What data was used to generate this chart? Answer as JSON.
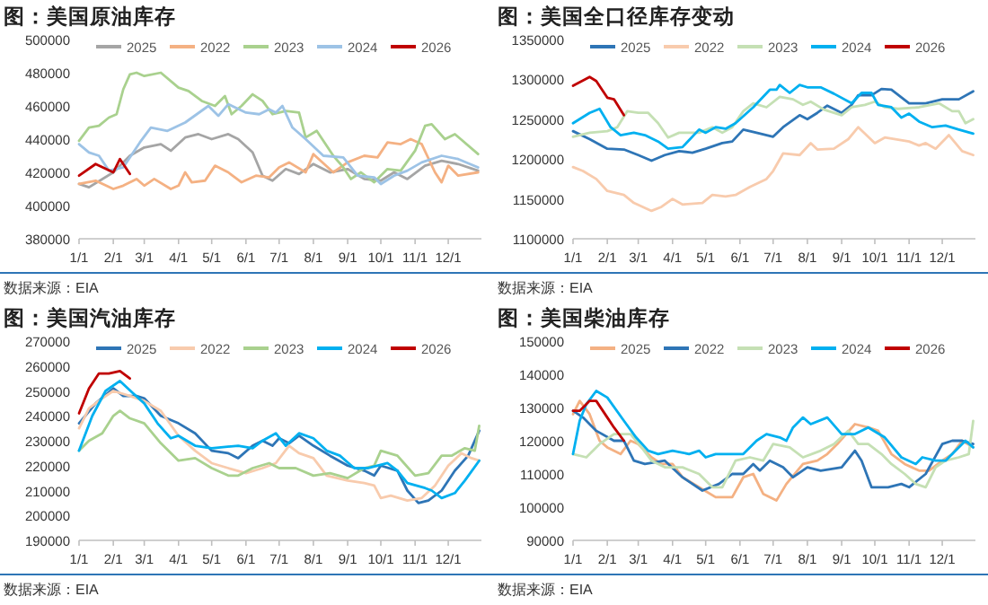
{
  "chart_data": [
    {
      "type": "line",
      "title": "图：美国原油库存",
      "annotations": [
        "数据来源：EIA"
      ],
      "legend": "top",
      "xlim": [
        "--01-01",
        "--12-31"
      ],
      "xticks": [
        {
          "value": "--01-01",
          "label": "1/1"
        },
        {
          "value": "--02-01",
          "label": "2/1"
        },
        {
          "value": "--03-01",
          "label": "3/1"
        },
        {
          "value": "--04-01",
          "label": "4/1"
        },
        {
          "value": "--05-01",
          "label": "5/1"
        },
        {
          "value": "--06-01",
          "label": "6/1"
        },
        {
          "value": "--07-01",
          "label": "7/1"
        },
        {
          "value": "--08-01",
          "label": "8/1"
        },
        {
          "value": "--09-01",
          "label": "9/1"
        },
        {
          "value": "--10-01",
          "label": "10/1"
        },
        {
          "value": "--11-01",
          "label": "11/1"
        },
        {
          "value": "--12-01",
          "label": "12/1"
        }
      ],
      "ylim": [
        380000,
        500000
      ],
      "yticks": [
        380000,
        400000,
        420000,
        440000,
        460000,
        480000,
        500000
      ],
      "series": [
        {
          "name": "2025",
          "color": "#a5a5a5",
          "x": [
            "--01-01",
            "--01-10",
            "--02-01",
            "--02-16",
            "--03-01",
            "--03-16",
            "--03-25",
            "--04-07",
            "--04-19",
            "--05-01",
            "--05-16",
            "--05-25",
            "--06-07",
            "--06-16",
            "--06-25",
            "--07-07",
            "--07-19",
            "--08-01",
            "--08-16",
            "--09-01",
            "--09-16",
            "--10-01",
            "--10-13",
            "--10-25",
            "--11-10",
            "--11-25",
            "--12-10",
            "--12-28"
          ],
          "values": [
            413000,
            411000,
            420000,
            430000,
            435000,
            437000,
            433000,
            441000,
            443000,
            440000,
            443000,
            440000,
            432000,
            418000,
            415000,
            422000,
            419000,
            425000,
            420000,
            422000,
            416000,
            415000,
            420000,
            416000,
            424000,
            427000,
            425000,
            421000
          ]
        },
        {
          "name": "2022",
          "color": "#f4b183",
          "x": [
            "--01-01",
            "--01-16",
            "--02-01",
            "--02-10",
            "--02-22",
            "--03-01",
            "--03-10",
            "--03-25",
            "--04-01",
            "--04-07",
            "--04-13",
            "--04-25",
            "--05-04",
            "--05-16",
            "--05-28",
            "--06-10",
            "--06-22",
            "--07-01",
            "--07-10",
            "--07-25",
            "--08-01",
            "--08-19",
            "--09-01",
            "--09-16",
            "--09-28",
            "--10-07",
            "--10-19",
            "--10-28",
            "--11-07",
            "--11-19",
            "--11-25",
            "--12-01",
            "--12-10",
            "--12-28"
          ],
          "values": [
            413000,
            415000,
            410000,
            412000,
            416000,
            412000,
            416000,
            410000,
            412000,
            420000,
            414000,
            415000,
            424000,
            420000,
            414000,
            418000,
            417000,
            423000,
            426000,
            420000,
            431000,
            420000,
            426000,
            430000,
            429000,
            438000,
            437000,
            440000,
            437000,
            420000,
            414000,
            424000,
            418000,
            420000
          ]
        },
        {
          "name": "2023",
          "color": "#a9d18e",
          "x": [
            "--01-01",
            "--01-10",
            "--01-19",
            "--01-28",
            "--02-04",
            "--02-10",
            "--02-16",
            "--02-22",
            "--03-01",
            "--03-16",
            "--04-01",
            "--04-10",
            "--04-22",
            "--05-04",
            "--05-13",
            "--05-19",
            "--05-28",
            "--06-07",
            "--06-16",
            "--06-25",
            "--07-07",
            "--07-19",
            "--07-25",
            "--08-04",
            "--08-19",
            "--08-28",
            "--09-04",
            "--09-13",
            "--09-25",
            "--10-07",
            "--10-19",
            "--11-01",
            "--11-10",
            "--11-16",
            "--11-28",
            "--12-07",
            "--12-28"
          ],
          "values": [
            439000,
            447000,
            448000,
            453000,
            455000,
            470000,
            479000,
            480000,
            478000,
            480000,
            471000,
            469000,
            463000,
            460000,
            466000,
            455000,
            460000,
            467000,
            463000,
            455000,
            457000,
            456000,
            441000,
            445000,
            430000,
            423000,
            416000,
            420000,
            414000,
            422000,
            421000,
            433000,
            448000,
            449000,
            440000,
            443000,
            431000
          ]
        },
        {
          "name": "2024",
          "color": "#9dc3e6",
          "x": [
            "--01-01",
            "--01-10",
            "--01-19",
            "--01-28",
            "--02-10",
            "--02-25",
            "--03-07",
            "--03-22",
            "--04-07",
            "--04-28",
            "--05-07",
            "--05-16",
            "--06-01",
            "--06-13",
            "--06-22",
            "--06-28",
            "--07-04",
            "--07-13",
            "--07-25",
            "--08-10",
            "--08-28",
            "--09-10",
            "--09-25",
            "--10-01",
            "--10-13",
            "--10-25",
            "--11-07",
            "--11-25",
            "--12-10",
            "--12-28"
          ],
          "values": [
            437000,
            432000,
            430000,
            421000,
            423000,
            438000,
            447000,
            445000,
            450000,
            460000,
            454000,
            461000,
            456000,
            455000,
            458000,
            456000,
            460000,
            447000,
            440000,
            430000,
            429000,
            418000,
            417000,
            413000,
            418000,
            421000,
            426000,
            430000,
            428000,
            423000
          ]
        },
        {
          "name": "2026",
          "color": "#c00000",
          "x": [
            "--01-01",
            "--01-16",
            "--02-01",
            "--02-07",
            "--02-16"
          ],
          "values": [
            418000,
            425000,
            420000,
            428000,
            419000
          ]
        }
      ]
    },
    {
      "type": "line",
      "title": "图：美国全口径库存变动",
      "annotations": [
        "数据来源：EIA"
      ],
      "legend": "top",
      "xlim": [
        "--01-01",
        "--12-31"
      ],
      "xticks": [
        {
          "value": "--01-01",
          "label": "1/1"
        },
        {
          "value": "--02-01",
          "label": "2/1"
        },
        {
          "value": "--03-01",
          "label": "3/1"
        },
        {
          "value": "--04-01",
          "label": "4/1"
        },
        {
          "value": "--05-01",
          "label": "5/1"
        },
        {
          "value": "--06-01",
          "label": "6/1"
        },
        {
          "value": "--07-01",
          "label": "7/1"
        },
        {
          "value": "--08-01",
          "label": "8/1"
        },
        {
          "value": "--09-01",
          "label": "9/1"
        },
        {
          "value": "--10-01",
          "label": "10/1"
        },
        {
          "value": "--11-01",
          "label": "11/1"
        },
        {
          "value": "--12-01",
          "label": "12/1"
        }
      ],
      "ylim": [
        1100000,
        1350000
      ],
      "yticks": [
        1100000,
        1150000,
        1200000,
        1250000,
        1300000,
        1350000
      ],
      "series": [
        {
          "name": "2025",
          "color": "#2e75b6",
          "x": [
            "--01-01",
            "--01-16",
            "--02-01",
            "--02-16",
            "--03-01",
            "--03-13",
            "--03-25",
            "--04-07",
            "--04-19",
            "--05-01",
            "--05-16",
            "--05-25",
            "--06-04",
            "--06-16",
            "--07-01",
            "--07-10",
            "--07-25",
            "--08-01",
            "--08-10",
            "--08-19",
            "--09-01",
            "--09-10",
            "--09-16",
            "--09-28",
            "--10-07",
            "--10-16",
            "--11-01",
            "--11-16",
            "--12-01",
            "--12-16",
            "--12-29"
          ],
          "values": [
            1235000,
            1225000,
            1213000,
            1212000,
            1205000,
            1198000,
            1205000,
            1210000,
            1208000,
            1213000,
            1220000,
            1222000,
            1237000,
            1233000,
            1228000,
            1240000,
            1255000,
            1250000,
            1258000,
            1267000,
            1258000,
            1268000,
            1280000,
            1280000,
            1288000,
            1287000,
            1270000,
            1270000,
            1275000,
            1275000,
            1285000
          ]
        },
        {
          "name": "2022",
          "color": "#f8cbad",
          "x": [
            "--01-01",
            "--01-10",
            "--01-22",
            "--02-01",
            "--02-16",
            "--02-25",
            "--03-13",
            "--03-22",
            "--04-01",
            "--04-10",
            "--04-28",
            "--05-07",
            "--05-19",
            "--05-28",
            "--06-10",
            "--06-25",
            "--07-01",
            "--07-10",
            "--07-25",
            "--08-04",
            "--08-10",
            "--08-25",
            "--09-07",
            "--09-16",
            "--10-01",
            "--10-10",
            "--11-01",
            "--11-10",
            "--11-16",
            "--11-25",
            "--12-07",
            "--12-19",
            "--12-29"
          ],
          "values": [
            1190000,
            1185000,
            1175000,
            1160000,
            1155000,
            1145000,
            1135000,
            1140000,
            1150000,
            1143000,
            1145000,
            1155000,
            1153000,
            1155000,
            1165000,
            1175000,
            1185000,
            1207000,
            1205000,
            1220000,
            1212000,
            1213000,
            1225000,
            1240000,
            1220000,
            1227000,
            1222000,
            1217000,
            1220000,
            1213000,
            1230000,
            1210000,
            1205000
          ]
        },
        {
          "name": "2023",
          "color": "#c5e0b4",
          "x": [
            "--01-01",
            "--01-16",
            "--02-01",
            "--02-10",
            "--02-19",
            "--03-01",
            "--03-10",
            "--03-19",
            "--03-28",
            "--04-07",
            "--04-25",
            "--05-07",
            "--05-16",
            "--05-25",
            "--06-04",
            "--06-13",
            "--06-25",
            "--07-07",
            "--07-19",
            "--07-28",
            "--08-04",
            "--08-16",
            "--09-01",
            "--09-10",
            "--09-22",
            "--10-01",
            "--10-10",
            "--10-22",
            "--11-10",
            "--11-28",
            "--12-10",
            "--12-16",
            "--12-22",
            "--12-29"
          ],
          "values": [
            1228000,
            1233000,
            1235000,
            1240000,
            1260000,
            1258000,
            1258000,
            1245000,
            1227000,
            1233000,
            1233000,
            1240000,
            1233000,
            1240000,
            1260000,
            1270000,
            1265000,
            1278000,
            1275000,
            1268000,
            1272000,
            1262000,
            1255000,
            1265000,
            1268000,
            1272000,
            1265000,
            1263000,
            1265000,
            1270000,
            1260000,
            1260000,
            1245000,
            1250000
          ]
        },
        {
          "name": "2024",
          "color": "#00b0f0",
          "x": [
            "--01-01",
            "--01-16",
            "--01-25",
            "--02-04",
            "--02-13",
            "--02-25",
            "--03-07",
            "--03-19",
            "--03-28",
            "--04-10",
            "--04-25",
            "--05-01",
            "--05-10",
            "--05-19",
            "--05-28",
            "--06-13",
            "--06-28",
            "--07-04",
            "--07-07",
            "--07-16",
            "--07-25",
            "--08-01",
            "--08-13",
            "--08-25",
            "--09-10",
            "--09-19",
            "--09-28",
            "--10-04",
            "--10-16",
            "--10-25",
            "--11-01",
            "--11-10",
            "--11-22",
            "--12-04",
            "--12-16",
            "--12-29"
          ],
          "values": [
            1245000,
            1258000,
            1263000,
            1240000,
            1230000,
            1233000,
            1230000,
            1222000,
            1213000,
            1215000,
            1237000,
            1233000,
            1240000,
            1238000,
            1245000,
            1265000,
            1287000,
            1287000,
            1293000,
            1283000,
            1293000,
            1290000,
            1290000,
            1282000,
            1270000,
            1283000,
            1283000,
            1268000,
            1265000,
            1252000,
            1257000,
            1247000,
            1240000,
            1242000,
            1237000,
            1232000
          ]
        },
        {
          "name": "2026",
          "color": "#c00000",
          "x": [
            "--01-01",
            "--01-16",
            "--01-22",
            "--02-01",
            "--02-07",
            "--02-16"
          ],
          "values": [
            1292000,
            1303000,
            1298000,
            1277000,
            1275000,
            1255000
          ]
        }
      ]
    },
    {
      "type": "line",
      "title": "图：美国汽油库存",
      "annotations": [
        "数据来源：EIA"
      ],
      "legend": "top",
      "xlim": [
        "--01-01",
        "--12-31"
      ],
      "xticks": [
        {
          "value": "--01-01",
          "label": "1/1"
        },
        {
          "value": "--02-01",
          "label": "2/1"
        },
        {
          "value": "--03-01",
          "label": "3/1"
        },
        {
          "value": "--04-01",
          "label": "4/1"
        },
        {
          "value": "--05-01",
          "label": "5/1"
        },
        {
          "value": "--06-01",
          "label": "6/1"
        },
        {
          "value": "--07-01",
          "label": "7/1"
        },
        {
          "value": "--08-01",
          "label": "8/1"
        },
        {
          "value": "--09-01",
          "label": "9/1"
        },
        {
          "value": "--10-01",
          "label": "10/1"
        },
        {
          "value": "--11-01",
          "label": "11/1"
        },
        {
          "value": "--12-01",
          "label": "12/1"
        }
      ],
      "ylim": [
        190000,
        270000
      ],
      "yticks": [
        190000,
        200000,
        210000,
        220000,
        230000,
        240000,
        250000,
        260000,
        270000
      ],
      "series": [
        {
          "name": "2025",
          "color": "#2e75b6",
          "x": [
            "--01-01",
            "--01-16",
            "--02-01",
            "--02-10",
            "--02-22",
            "--03-01",
            "--03-16",
            "--04-01",
            "--04-16",
            "--05-01",
            "--05-16",
            "--05-25",
            "--06-07",
            "--06-16",
            "--06-25",
            "--07-01",
            "--07-10",
            "--07-19",
            "--08-01",
            "--08-16",
            "--09-01",
            "--09-16",
            "--09-25",
            "--10-01",
            "--10-16",
            "--10-25",
            "--11-04",
            "--11-13",
            "--11-25",
            "--12-07",
            "--12-19",
            "--12-29"
          ],
          "values": [
            237000,
            245000,
            251000,
            248000,
            248000,
            247000,
            240000,
            237000,
            233000,
            226000,
            225000,
            223000,
            228000,
            230000,
            228000,
            231000,
            229000,
            232000,
            228000,
            224000,
            220000,
            218000,
            216000,
            220000,
            218000,
            210000,
            205000,
            206000,
            210000,
            218000,
            224000,
            234000
          ]
        },
        {
          "name": "2022",
          "color": "#f8cbad",
          "x": [
            "--01-01",
            "--01-10",
            "--01-22",
            "--02-01",
            "--02-16",
            "--03-01",
            "--03-16",
            "--04-01",
            "--04-16",
            "--05-01",
            "--05-16",
            "--06-01",
            "--06-16",
            "--06-28",
            "--07-10",
            "--07-19",
            "--08-01",
            "--08-13",
            "--09-01",
            "--09-16",
            "--09-25",
            "--10-01",
            "--10-10",
            "--10-25",
            "--11-07",
            "--11-19",
            "--12-01",
            "--12-13",
            "--12-22",
            "--12-29"
          ],
          "values": [
            235000,
            243000,
            247000,
            250000,
            248000,
            246000,
            242000,
            232000,
            226000,
            221000,
            219000,
            217000,
            219000,
            221000,
            228000,
            225000,
            223000,
            216000,
            214000,
            213000,
            212000,
            207000,
            208000,
            206000,
            207000,
            212000,
            220000,
            225000,
            223000,
            222000
          ]
        },
        {
          "name": "2023",
          "color": "#a9d18e",
          "x": [
            "--01-01",
            "--01-10",
            "--01-22",
            "--02-01",
            "--02-07",
            "--02-16",
            "--03-01",
            "--03-16",
            "--04-01",
            "--04-16",
            "--05-01",
            "--05-16",
            "--05-25",
            "--06-07",
            "--06-22",
            "--07-01",
            "--07-16",
            "--08-01",
            "--08-16",
            "--09-01",
            "--09-16",
            "--09-25",
            "--10-01",
            "--10-16",
            "--10-22",
            "--11-01",
            "--11-13",
            "--11-25",
            "--12-04",
            "--12-16",
            "--12-25",
            "--12-29"
          ],
          "values": [
            226000,
            230000,
            233000,
            240000,
            242000,
            239000,
            237000,
            229000,
            222000,
            223000,
            219000,
            216000,
            216000,
            219000,
            221000,
            219000,
            219000,
            216000,
            217000,
            215000,
            219000,
            220000,
            226000,
            224000,
            221000,
            216000,
            217000,
            224000,
            224000,
            227000,
            226000,
            236000
          ]
        },
        {
          "name": "2024",
          "color": "#00b0f0",
          "x": [
            "--01-01",
            "--01-13",
            "--01-25",
            "--02-07",
            "--02-19",
            "--03-01",
            "--03-13",
            "--03-25",
            "--04-01",
            "--04-16",
            "--05-01",
            "--05-25",
            "--06-07",
            "--06-16",
            "--06-28",
            "--07-07",
            "--07-19",
            "--08-01",
            "--08-13",
            "--08-25",
            "--09-07",
            "--09-19",
            "--10-07",
            "--10-16",
            "--10-25",
            "--11-10",
            "--11-16",
            "--11-25",
            "--12-07",
            "--12-16",
            "--12-29"
          ],
          "values": [
            226000,
            240000,
            250000,
            254000,
            249000,
            245000,
            237000,
            231000,
            232000,
            228000,
            227000,
            228000,
            227000,
            230000,
            233000,
            228000,
            233000,
            231000,
            226000,
            224000,
            219000,
            219000,
            221000,
            218000,
            213000,
            211000,
            210000,
            207000,
            209000,
            214000,
            222000
          ]
        },
        {
          "name": "2026",
          "color": "#c00000",
          "x": [
            "--01-01",
            "--01-10",
            "--01-19",
            "--01-28",
            "--02-07",
            "--02-16"
          ],
          "values": [
            241000,
            251000,
            257000,
            257000,
            258000,
            255000
          ]
        }
      ]
    },
    {
      "type": "line",
      "title": "图：美国柴油库存",
      "annotations": [
        "数据来源：EIA"
      ],
      "legend": "top",
      "xlim": [
        "--01-01",
        "--12-31"
      ],
      "xticks": [
        {
          "value": "--01-01",
          "label": "1/1"
        },
        {
          "value": "--02-01",
          "label": "2/1"
        },
        {
          "value": "--03-01",
          "label": "3/1"
        },
        {
          "value": "--04-01",
          "label": "4/1"
        },
        {
          "value": "--05-01",
          "label": "5/1"
        },
        {
          "value": "--06-01",
          "label": "6/1"
        },
        {
          "value": "--07-01",
          "label": "7/1"
        },
        {
          "value": "--08-01",
          "label": "8/1"
        },
        {
          "value": "--09-01",
          "label": "9/1"
        },
        {
          "value": "--10-01",
          "label": "10/1"
        },
        {
          "value": "--11-01",
          "label": "11/1"
        },
        {
          "value": "--12-01",
          "label": "12/1"
        }
      ],
      "ylim": [
        90000,
        150000
      ],
      "yticks": [
        90000,
        100000,
        110000,
        120000,
        130000,
        140000,
        150000
      ],
      "series": [
        {
          "name": "2025",
          "color": "#f4b183",
          "x": [
            "--01-01",
            "--01-07",
            "--01-16",
            "--01-25",
            "--02-01",
            "--02-13",
            "--02-22",
            "--03-01",
            "--03-13",
            "--03-22",
            "--04-01",
            "--04-10",
            "--04-25",
            "--05-10",
            "--05-25",
            "--06-04",
            "--06-13",
            "--06-22",
            "--07-04",
            "--07-13",
            "--07-28",
            "--08-10",
            "--08-19",
            "--08-28",
            "--09-13",
            "--09-25",
            "--10-04",
            "--10-16",
            "--10-28",
            "--11-10",
            "--11-19",
            "--12-01",
            "--12-10",
            "--12-19",
            "--12-29"
          ],
          "values": [
            128000,
            132000,
            128000,
            120000,
            118000,
            116000,
            120000,
            119000,
            115000,
            113000,
            113000,
            109000,
            106000,
            103000,
            103000,
            109000,
            110000,
            104000,
            102000,
            107000,
            113000,
            114000,
            116000,
            119000,
            125000,
            124000,
            123000,
            116000,
            113000,
            111000,
            111000,
            114000,
            116000,
            120000,
            118000
          ]
        },
        {
          "name": "2022",
          "color": "#2e75b6",
          "x": [
            "--01-01",
            "--01-10",
            "--01-22",
            "--02-07",
            "--02-16",
            "--02-25",
            "--03-07",
            "--03-25",
            "--04-10",
            "--04-28",
            "--05-13",
            "--05-25",
            "--06-04",
            "--06-13",
            "--06-19",
            "--06-28",
            "--07-10",
            "--07-19",
            "--08-01",
            "--08-13",
            "--09-01",
            "--09-13",
            "--09-19",
            "--09-28",
            "--10-13",
            "--10-25",
            "--11-01",
            "--11-16",
            "--12-01",
            "--12-10",
            "--12-19",
            "--12-29"
          ],
          "values": [
            129000,
            127000,
            123000,
            120000,
            120000,
            114000,
            113000,
            114000,
            109000,
            105000,
            107000,
            110000,
            110000,
            113000,
            111000,
            114000,
            112000,
            109000,
            112000,
            111000,
            112000,
            117000,
            114000,
            106000,
            106000,
            107000,
            106000,
            110000,
            119000,
            120000,
            120000,
            119000
          ]
        },
        {
          "name": "2023",
          "color": "#c5e0b4",
          "x": [
            "--01-01",
            "--01-13",
            "--01-25",
            "--02-07",
            "--02-22",
            "--03-04",
            "--03-13",
            "--03-25",
            "--04-10",
            "--04-25",
            "--05-07",
            "--05-16",
            "--05-28",
            "--06-10",
            "--06-22",
            "--07-01",
            "--07-16",
            "--07-28",
            "--08-13",
            "--08-25",
            "--09-07",
            "--09-16",
            "--09-25",
            "--10-07",
            "--10-16",
            "--10-28",
            "--11-07",
            "--11-16",
            "--11-25",
            "--12-04",
            "--12-16",
            "--12-25",
            "--12-29"
          ],
          "values": [
            116000,
            115000,
            119000,
            122000,
            122000,
            118000,
            114000,
            112000,
            112000,
            110000,
            106000,
            106000,
            114000,
            115000,
            114000,
            119000,
            118000,
            115000,
            117000,
            119000,
            123000,
            119000,
            119000,
            116000,
            113000,
            110000,
            107000,
            106000,
            112000,
            114000,
            115000,
            116000,
            126000
          ]
        },
        {
          "name": "2024",
          "color": "#00b0f0",
          "x": [
            "--01-01",
            "--01-07",
            "--01-13",
            "--01-22",
            "--02-01",
            "--02-16",
            "--02-27",
            "--03-10",
            "--03-19",
            "--04-01",
            "--04-16",
            "--04-25",
            "--05-01",
            "--05-10",
            "--05-22",
            "--06-04",
            "--06-16",
            "--06-25",
            "--07-07",
            "--07-13",
            "--07-19",
            "--07-28",
            "--08-04",
            "--08-19",
            "--09-01",
            "--09-13",
            "--09-25",
            "--10-10",
            "--10-25",
            "--11-07",
            "--11-13",
            "--11-25",
            "--12-04",
            "--12-22",
            "--12-29"
          ],
          "values": [
            116000,
            126000,
            131000,
            135000,
            133000,
            126000,
            121000,
            117000,
            116000,
            117000,
            116000,
            117000,
            115000,
            116000,
            116000,
            116000,
            120000,
            122000,
            121000,
            120000,
            124000,
            127000,
            125000,
            127000,
            122000,
            122000,
            124000,
            121000,
            115000,
            113000,
            115000,
            114000,
            114000,
            120000,
            118000
          ]
        },
        {
          "name": "2026",
          "color": "#c00000",
          "x": [
            "--01-01",
            "--01-07",
            "--01-16",
            "--01-22",
            "--02-01",
            "--02-07",
            "--02-16"
          ],
          "values": [
            129000,
            129000,
            132000,
            132000,
            127000,
            124000,
            120000
          ]
        }
      ]
    }
  ]
}
